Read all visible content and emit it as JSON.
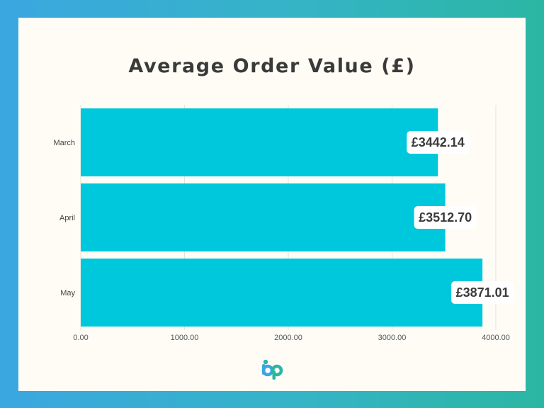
{
  "chart_data": {
    "type": "bar",
    "orientation": "horizontal",
    "title": "Average Order Value (£)",
    "categories": [
      "March",
      "April",
      "May"
    ],
    "values": [
      3442.14,
      3512.7,
      3871.01
    ],
    "value_labels": [
      "£3442.14",
      "£3512.70",
      "£3871.01"
    ],
    "x_ticks": [
      "0.00",
      "1000.00",
      "2000.00",
      "3000.00",
      "4000.00"
    ],
    "xlim": [
      0,
      4000
    ],
    "xlabel": "",
    "ylabel": "",
    "grid": true,
    "legend": "none"
  },
  "colors": {
    "bar": "#00c8dc",
    "background": "#fffcf6",
    "text": "#3a3a3a",
    "grid": "#e6e2da"
  },
  "logo": {
    "icon": "bp-logo-icon"
  }
}
